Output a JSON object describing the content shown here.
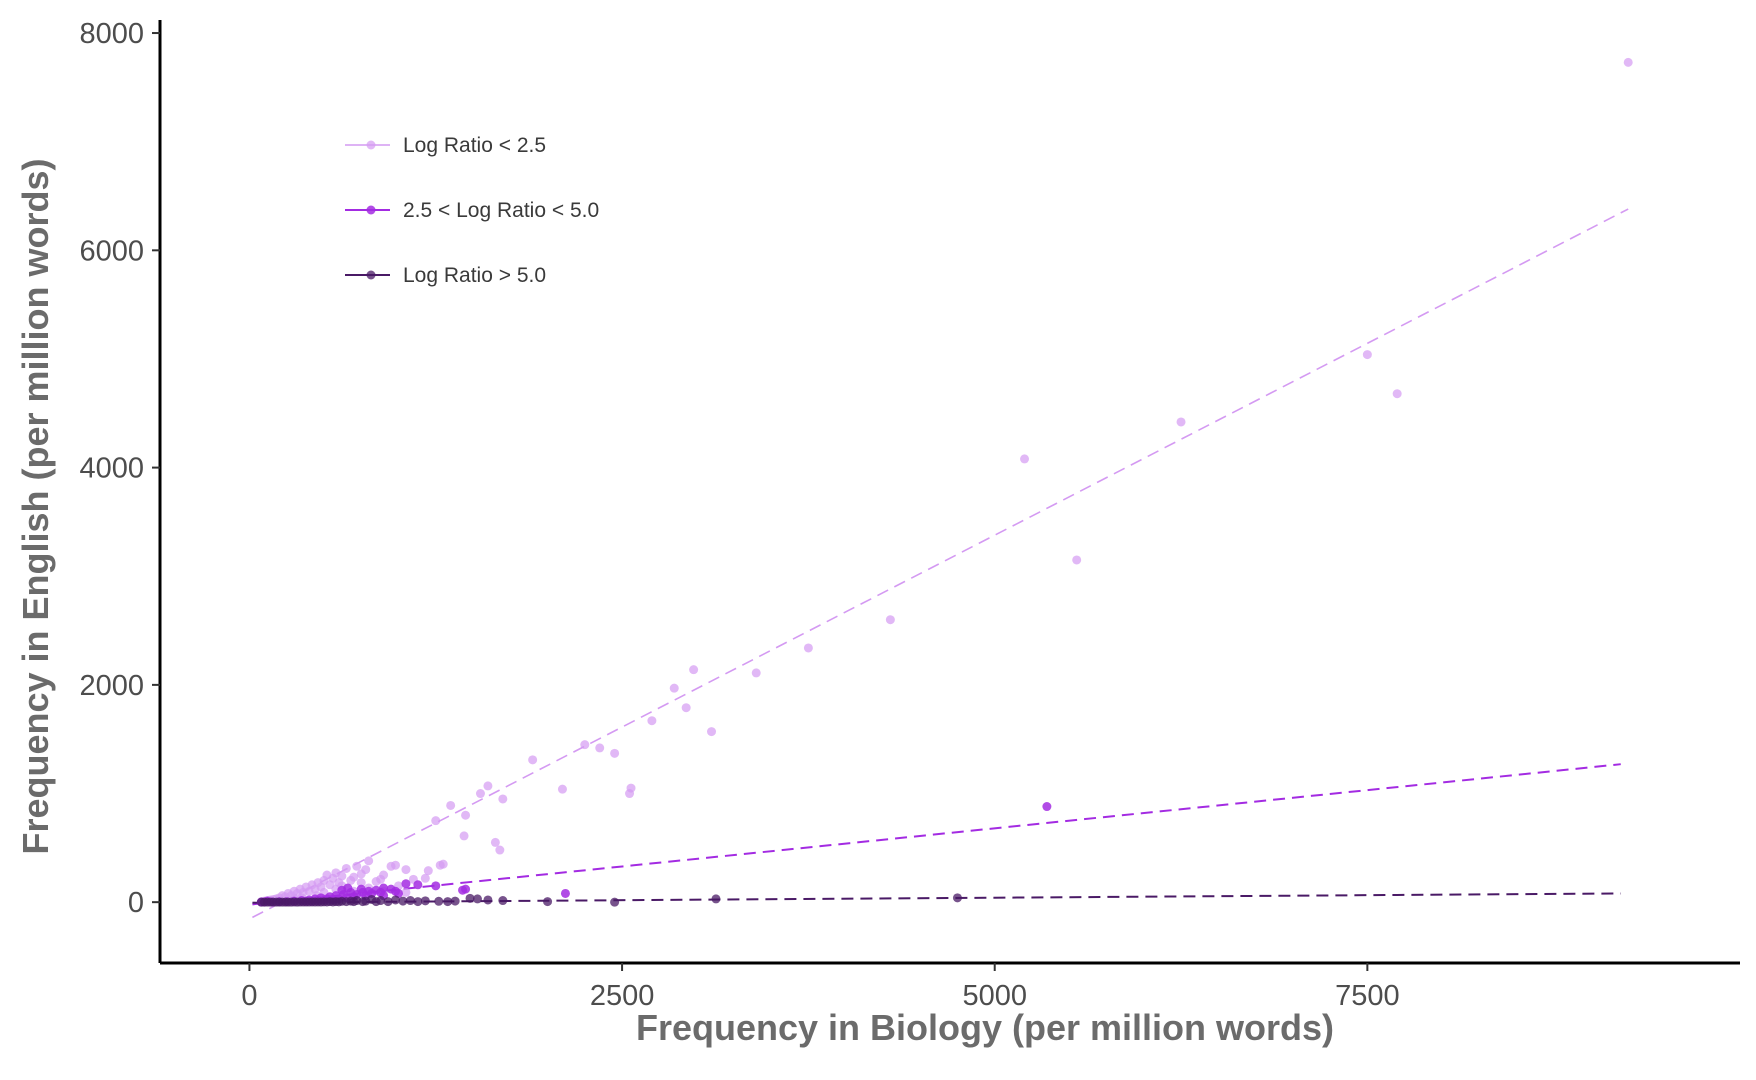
{
  "chart_data": {
    "type": "scatter",
    "xlabel": "Frequency in Biology (per million words)",
    "ylabel": "Frequency in English (per million words)",
    "xlim": [
      -600,
      10000
    ],
    "ylim": [
      -560,
      8120
    ],
    "x_ticks": [
      0,
      2500,
      5000,
      7500
    ],
    "x_tick_labels": [
      "0",
      "2500",
      "5000",
      "7500"
    ],
    "y_ticks": [
      0,
      2000,
      4000,
      6000,
      8000
    ],
    "y_tick_labels": [
      "0",
      "2000",
      "4000",
      "6000",
      "8000"
    ],
    "grid": false,
    "legend_position": "top-left",
    "series": [
      {
        "name": "Log Ratio < 2.5",
        "color": "#d49af2",
        "opacity": 0.7,
        "points": [
          [
            9250,
            7730
          ],
          [
            7700,
            4680
          ],
          [
            7500,
            5040
          ],
          [
            6250,
            4420
          ],
          [
            5550,
            3150
          ],
          [
            5200,
            4080
          ],
          [
            4300,
            2600
          ],
          [
            3750,
            2340
          ],
          [
            3400,
            2110
          ],
          [
            3100,
            1570
          ],
          [
            2980,
            2140
          ],
          [
            2930,
            1790
          ],
          [
            2850,
            1970
          ],
          [
            2700,
            1670
          ],
          [
            2550,
            1000
          ],
          [
            2560,
            1050
          ],
          [
            2450,
            1370
          ],
          [
            2350,
            1420
          ],
          [
            2250,
            1450
          ],
          [
            2100,
            1040
          ],
          [
            1900,
            1310
          ],
          [
            1700,
            950
          ],
          [
            1680,
            480
          ],
          [
            1650,
            550
          ],
          [
            1600,
            1070
          ],
          [
            1550,
            1000
          ],
          [
            1450,
            800
          ],
          [
            1440,
            610
          ],
          [
            1350,
            890
          ],
          [
            1300,
            350
          ],
          [
            1250,
            750
          ],
          [
            1280,
            340
          ],
          [
            1200,
            290
          ],
          [
            1180,
            220
          ],
          [
            1100,
            210
          ],
          [
            1050,
            300
          ],
          [
            980,
            340
          ],
          [
            950,
            330
          ],
          [
            900,
            250
          ],
          [
            880,
            210
          ],
          [
            850,
            190
          ],
          [
            800,
            380
          ],
          [
            780,
            300
          ],
          [
            750,
            260
          ],
          [
            720,
            330
          ],
          [
            700,
            230
          ],
          [
            680,
            200
          ],
          [
            650,
            310
          ],
          [
            620,
            240
          ],
          [
            600,
            180
          ],
          [
            580,
            270
          ],
          [
            560,
            220
          ],
          [
            540,
            160
          ],
          [
            520,
            250
          ],
          [
            500,
            200
          ],
          [
            480,
            140
          ],
          [
            460,
            180
          ],
          [
            440,
            120
          ],
          [
            420,
            160
          ],
          [
            400,
            100
          ],
          [
            380,
            140
          ],
          [
            360,
            90
          ],
          [
            340,
            120
          ],
          [
            320,
            80
          ],
          [
            300,
            100
          ],
          [
            280,
            60
          ],
          [
            260,
            80
          ],
          [
            240,
            50
          ],
          [
            220,
            60
          ],
          [
            200,
            40
          ],
          [
            180,
            30
          ],
          [
            160,
            25
          ],
          [
            140,
            20
          ],
          [
            120,
            15
          ],
          [
            100,
            10
          ],
          [
            80,
            5
          ],
          [
            580,
            120
          ],
          [
            620,
            150
          ],
          [
            500,
            90
          ],
          [
            450,
            60
          ],
          [
            350,
            40
          ],
          [
            300,
            30
          ],
          [
            750,
            180
          ],
          [
            800,
            130
          ],
          [
            900,
            100
          ],
          [
            1000,
            150
          ],
          [
            1050,
            90
          ],
          [
            700,
            100
          ]
        ],
        "fit": [
          [
            20,
            -140
          ],
          [
            9250,
            6380
          ]
        ]
      },
      {
        "name": "2.5 < Log Ratio < 5.0",
        "color": "#a32be2",
        "opacity": 0.85,
        "points": [
          [
            5350,
            880
          ],
          [
            2120,
            80
          ],
          [
            1430,
            110
          ],
          [
            1450,
            120
          ],
          [
            1250,
            150
          ],
          [
            1130,
            160
          ],
          [
            1050,
            170
          ],
          [
            980,
            100
          ],
          [
            950,
            120
          ],
          [
            900,
            130
          ],
          [
            880,
            90
          ],
          [
            850,
            110
          ],
          [
            820,
            80
          ],
          [
            800,
            100
          ],
          [
            780,
            60
          ],
          [
            750,
            120
          ],
          [
            720,
            70
          ],
          [
            700,
            50
          ],
          [
            680,
            90
          ],
          [
            650,
            40
          ],
          [
            630,
            70
          ],
          [
            620,
            110
          ],
          [
            600,
            30
          ],
          [
            580,
            60
          ],
          [
            560,
            20
          ],
          [
            540,
            50
          ],
          [
            520,
            30
          ],
          [
            500,
            20
          ],
          [
            480,
            40
          ],
          [
            460,
            15
          ],
          [
            440,
            30
          ],
          [
            420,
            10
          ],
          [
            400,
            20
          ],
          [
            380,
            10
          ],
          [
            350,
            15
          ],
          [
            300,
            10
          ],
          [
            250,
            5
          ],
          [
            200,
            5
          ],
          [
            150,
            3
          ],
          [
            100,
            2
          ],
          [
            80,
            1
          ],
          [
            120,
            10
          ],
          [
            660,
            130
          ],
          [
            760,
            90
          ],
          [
            900,
            60
          ],
          [
            1000,
            80
          ]
        ],
        "fit": [
          [
            20,
            -20
          ],
          [
            9200,
            1270
          ]
        ]
      },
      {
        "name": "Log Ratio > 5.0",
        "color": "#4a1a66",
        "opacity": 0.75,
        "points": [
          [
            4750,
            40
          ],
          [
            3130,
            30
          ],
          [
            2450,
            0
          ],
          [
            2000,
            5
          ],
          [
            1700,
            15
          ],
          [
            1600,
            20
          ],
          [
            1530,
            30
          ],
          [
            1480,
            35
          ],
          [
            1380,
            10
          ],
          [
            1330,
            5
          ],
          [
            1270,
            8
          ],
          [
            1180,
            12
          ],
          [
            1130,
            5
          ],
          [
            1080,
            15
          ],
          [
            1030,
            10
          ],
          [
            980,
            20
          ],
          [
            930,
            5
          ],
          [
            880,
            15
          ],
          [
            850,
            5
          ],
          [
            820,
            25
          ],
          [
            780,
            10
          ],
          [
            760,
            5
          ],
          [
            720,
            15
          ],
          [
            700,
            5
          ],
          [
            680,
            10
          ],
          [
            650,
            5
          ],
          [
            620,
            8
          ],
          [
            600,
            3
          ],
          [
            580,
            5
          ],
          [
            560,
            2
          ],
          [
            540,
            5
          ],
          [
            520,
            2
          ],
          [
            500,
            3
          ],
          [
            480,
            1
          ],
          [
            460,
            2
          ],
          [
            440,
            1
          ],
          [
            420,
            2
          ],
          [
            400,
            1
          ],
          [
            380,
            1
          ],
          [
            360,
            1
          ],
          [
            340,
            1
          ],
          [
            320,
            0
          ],
          [
            300,
            1
          ],
          [
            280,
            0
          ],
          [
            260,
            0
          ],
          [
            240,
            0
          ],
          [
            220,
            0
          ],
          [
            200,
            0
          ],
          [
            180,
            0
          ],
          [
            160,
            0
          ],
          [
            140,
            0
          ],
          [
            120,
            0
          ],
          [
            100,
            0
          ],
          [
            80,
            0
          ]
        ],
        "fit": [
          [
            20,
            -5
          ],
          [
            9200,
            80
          ]
        ]
      }
    ]
  }
}
